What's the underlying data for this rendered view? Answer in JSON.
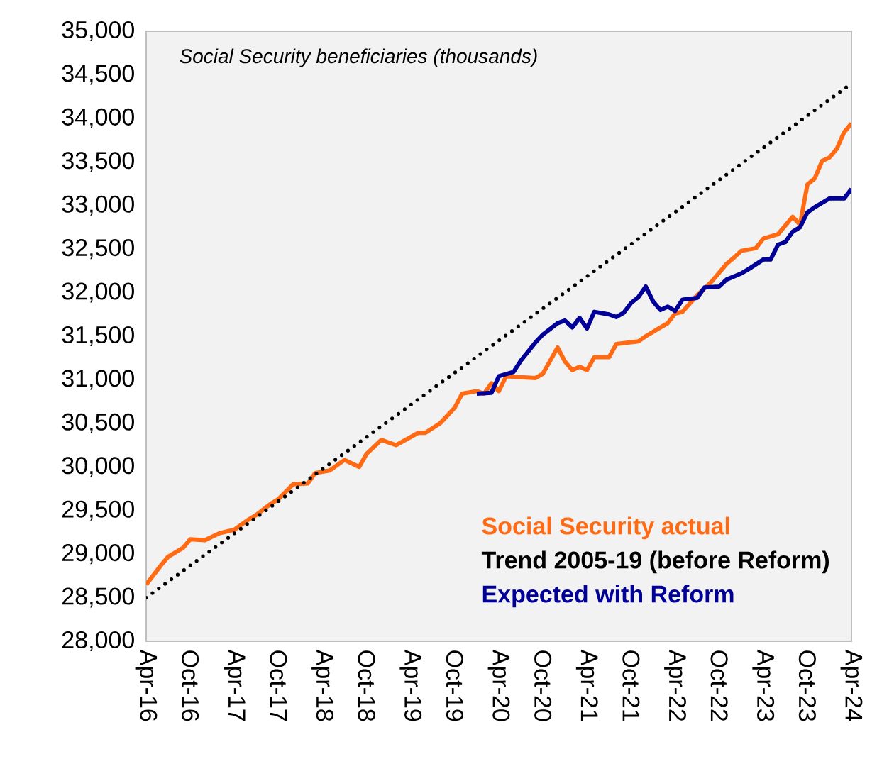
{
  "chart_data": {
    "type": "line",
    "title": "Social Security beneficiaries (thousands)",
    "xlim": [
      "2016-04",
      "2024-04"
    ],
    "xticks": [
      {
        "value": "2016-04",
        "label": "Apr-16"
      },
      {
        "value": "2016-10",
        "label": "Oct-16"
      },
      {
        "value": "2017-04",
        "label": "Apr-17"
      },
      {
        "value": "2017-10",
        "label": "Oct-17"
      },
      {
        "value": "2018-04",
        "label": "Apr-18"
      },
      {
        "value": "2018-10",
        "label": "Oct-18"
      },
      {
        "value": "2019-04",
        "label": "Apr-19"
      },
      {
        "value": "2019-10",
        "label": "Oct-19"
      },
      {
        "value": "2020-04",
        "label": "Apr-20"
      },
      {
        "value": "2020-10",
        "label": "Oct-20"
      },
      {
        "value": "2021-04",
        "label": "Apr-21"
      },
      {
        "value": "2021-10",
        "label": "Oct-21"
      },
      {
        "value": "2022-04",
        "label": "Apr-22"
      },
      {
        "value": "2022-10",
        "label": "Oct-22"
      },
      {
        "value": "2023-04",
        "label": "Apr-23"
      },
      {
        "value": "2023-10",
        "label": "Oct-23"
      },
      {
        "value": "2024-04",
        "label": "Apr-24"
      }
    ],
    "ylim": [
      28000,
      35000
    ],
    "yticks": [
      {
        "value": 28000,
        "label": "28,000"
      },
      {
        "value": 28500,
        "label": "28,500"
      },
      {
        "value": 29000,
        "label": "29,000"
      },
      {
        "value": 29500,
        "label": "29,500"
      },
      {
        "value": 30000,
        "label": "30,000"
      },
      {
        "value": 30500,
        "label": "30,500"
      },
      {
        "value": 31000,
        "label": "31,000"
      },
      {
        "value": 31500,
        "label": "31,500"
      },
      {
        "value": 32000,
        "label": "32,000"
      },
      {
        "value": 32500,
        "label": "32,500"
      },
      {
        "value": 33000,
        "label": "33,000"
      },
      {
        "value": 33500,
        "label": "33,500"
      },
      {
        "value": 34000,
        "label": "34,000"
      },
      {
        "value": 34500,
        "label": "34,500"
      },
      {
        "value": 35000,
        "label": "35,000"
      }
    ],
    "grid": false,
    "legend": "bottom right",
    "marker": "none",
    "series": [
      {
        "name": "Social Security actual",
        "color": "#ff6a13",
        "line_style": "solid",
        "x": [
          "2016-04",
          "2016-06",
          "2016-07",
          "2016-09",
          "2016-10",
          "2016-12",
          "2017-02",
          "2017-04",
          "2017-06",
          "2017-07",
          "2017-09",
          "2017-10",
          "2017-12",
          "2018-02",
          "2018-03",
          "2018-05",
          "2018-07",
          "2018-09",
          "2018-10",
          "2018-12",
          "2019-02",
          "2019-05",
          "2019-06",
          "2019-08",
          "2019-10",
          "2019-11",
          "2020-01",
          "2020-02",
          "2020-03",
          "2020-04",
          "2020-05",
          "2020-09",
          "2020-10",
          "2020-11",
          "2020-12",
          "2021-01",
          "2021-02",
          "2021-03",
          "2021-04",
          "2021-05",
          "2021-07",
          "2021-08",
          "2021-10",
          "2021-11",
          "2021-12",
          "2022-02",
          "2022-03",
          "2022-04",
          "2022-05",
          "2022-07",
          "2022-09",
          "2022-11",
          "2022-12",
          "2023-01",
          "2023-03",
          "2023-04",
          "2023-06",
          "2023-08",
          "2023-09",
          "2023-10",
          "2023-11",
          "2023-12",
          "2024-01",
          "2024-02",
          "2024-03",
          "2024-04"
        ],
        "values": [
          28650,
          28870,
          28970,
          29070,
          29170,
          29160,
          29240,
          29280,
          29400,
          29450,
          29580,
          29630,
          29800,
          29810,
          29930,
          29960,
          30080,
          30000,
          30150,
          30310,
          30250,
          30390,
          30390,
          30500,
          30680,
          30840,
          30870,
          30840,
          30960,
          30870,
          31040,
          31020,
          31070,
          31220,
          31370,
          31210,
          31110,
          31150,
          31110,
          31260,
          31260,
          31410,
          31430,
          31440,
          31500,
          31600,
          31650,
          31760,
          31780,
          31970,
          32130,
          32330,
          32400,
          32480,
          32510,
          32620,
          32670,
          32870,
          32780,
          33240,
          33310,
          33510,
          33550,
          33650,
          33840,
          33940
        ]
      },
      {
        "name": "Trend 2005-19 (before Reform)",
        "color": "#000000",
        "line_style": "dotted",
        "x": [
          "2016-04",
          "2024-04"
        ],
        "values": [
          28500,
          34400
        ]
      },
      {
        "name": "Expected with Reform",
        "color": "#000099",
        "line_style": "solid",
        "x": [
          "2020-01",
          "2020-03",
          "2020-04",
          "2020-06",
          "2020-07",
          "2020-09",
          "2020-10",
          "2020-12",
          "2021-01",
          "2021-02",
          "2021-03",
          "2021-04",
          "2021-05",
          "2021-07",
          "2021-08",
          "2021-09",
          "2021-10",
          "2021-11",
          "2021-12",
          "2022-01",
          "2022-02",
          "2022-03",
          "2022-04",
          "2022-05",
          "2022-07",
          "2022-08",
          "2022-10",
          "2022-11",
          "2023-01",
          "2023-02",
          "2023-04",
          "2023-05",
          "2023-06",
          "2023-07",
          "2023-08",
          "2023-09",
          "2023-10",
          "2023-11",
          "2023-12",
          "2024-01",
          "2024-03",
          "2024-04"
        ],
        "values": [
          30840,
          30850,
          31040,
          31090,
          31220,
          31430,
          31520,
          31650,
          31680,
          31600,
          31710,
          31590,
          31780,
          31750,
          31720,
          31770,
          31880,
          31950,
          32070,
          31900,
          31800,
          31840,
          31790,
          31920,
          31940,
          32060,
          32070,
          32150,
          32220,
          32270,
          32380,
          32380,
          32550,
          32580,
          32700,
          32750,
          32920,
          32980,
          33030,
          33080,
          33080,
          33190
        ]
      }
    ]
  }
}
